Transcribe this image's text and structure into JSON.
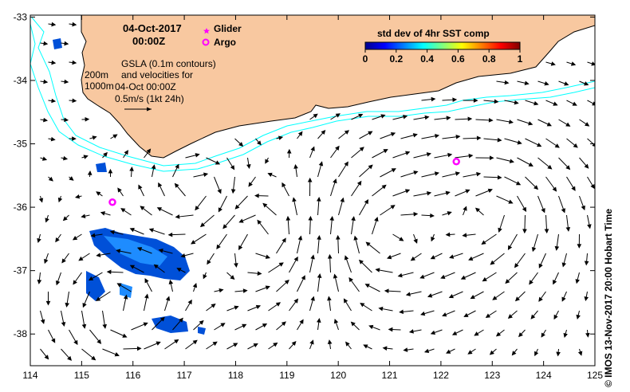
{
  "map": {
    "date_title": "04-Oct-2017",
    "time_title": "00:00Z",
    "legend": [
      {
        "label": "Glider",
        "color": "#ff00ff",
        "symbol": "star"
      },
      {
        "label": "Argo",
        "color": "#ff00ff",
        "symbol": "circle"
      }
    ],
    "notes": [
      "GSLA (0.1m contours)",
      "and velocities for",
      "04-Oct 00:00Z",
      "0.5m/s (1kt 24h)"
    ],
    "contour_labels": [
      "200m",
      "1000m"
    ],
    "colorbar": {
      "title": "std dev of 4hr SST comp",
      "ticks": [
        "0",
        "0.2",
        "0.4",
        "0.6",
        "0.8",
        "1"
      ],
      "colormap": "jet"
    },
    "x_ticks": [
      "114",
      "115",
      "116",
      "117",
      "118",
      "119",
      "120",
      "121",
      "122",
      "123",
      "124",
      "125"
    ],
    "y_ticks": [
      "-33",
      "-34",
      "-35",
      "-36",
      "-37",
      "-38"
    ],
    "credit": "© IMOS 13-Nov-2017 20:00 Hobart Time",
    "land_color": "#f8c8a0",
    "contour_color": "#00ffff",
    "argo_floats": [
      {
        "lon": 122.3,
        "lat": -35.28
      },
      {
        "lon": 115.6,
        "lat": -35.92
      }
    ]
  }
}
